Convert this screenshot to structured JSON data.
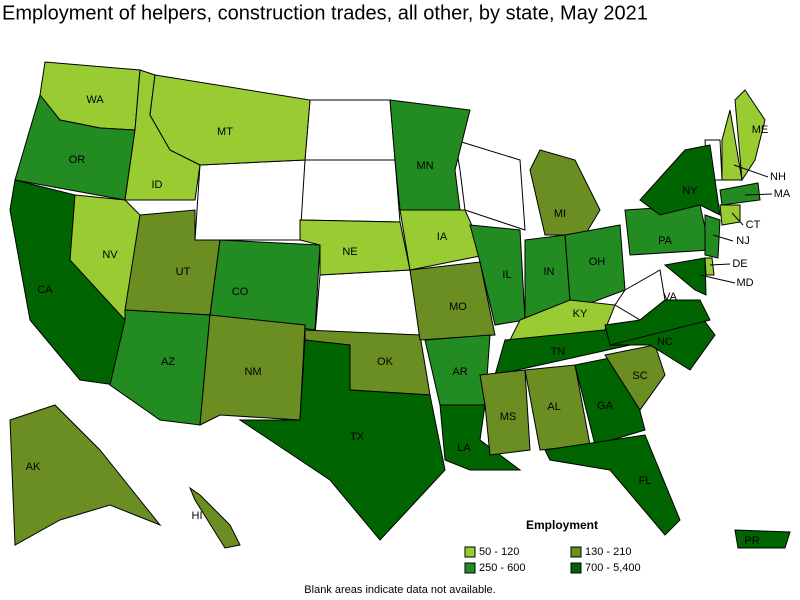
{
  "title": "Employment of helpers, construction trades, all other, by state, May 2021",
  "legend": {
    "title": "Employment",
    "items": [
      {
        "label": "50 - 120",
        "color": "#99cc33"
      },
      {
        "label": "130 - 210",
        "color": "#6b8e23"
      },
      {
        "label": "250 - 600",
        "color": "#228b22"
      },
      {
        "label": "700 - 5,400",
        "color": "#006400"
      }
    ]
  },
  "states": [
    {
      "label": "WA",
      "color": "#99cc33"
    },
    {
      "label": "OR",
      "color": "#228b22"
    },
    {
      "label": "CA",
      "color": "#006400"
    },
    {
      "label": "NV",
      "color": "#99cc33"
    },
    {
      "label": "ID",
      "color": "#99cc33"
    },
    {
      "label": "MT",
      "color": "#99cc33"
    },
    {
      "label": "UT",
      "color": "#6b8e23"
    },
    {
      "label": "CO",
      "color": "#228b22"
    },
    {
      "label": "AZ",
      "color": "#228b22"
    },
    {
      "label": "NM",
      "color": "#6b8e23"
    },
    {
      "label": "NE",
      "color": "#99cc33"
    },
    {
      "label": "OK",
      "color": "#6b8e23"
    },
    {
      "label": "TX",
      "color": "#006400"
    },
    {
      "label": "MN",
      "color": "#228b22"
    },
    {
      "label": "IA",
      "color": "#99cc33"
    },
    {
      "label": "MO",
      "color": "#6b8e23"
    },
    {
      "label": "AR",
      "color": "#228b22"
    },
    {
      "label": "LA",
      "color": "#006400"
    },
    {
      "label": "IL",
      "color": "#228b22"
    },
    {
      "label": "IN",
      "color": "#228b22"
    },
    {
      "label": "MI",
      "color": "#6b8e23"
    },
    {
      "label": "OH",
      "color": "#228b22"
    },
    {
      "label": "KY",
      "color": "#99cc33"
    },
    {
      "label": "TN",
      "color": "#006400"
    },
    {
      "label": "MS",
      "color": "#6b8e23"
    },
    {
      "label": "AL",
      "color": "#6b8e23"
    },
    {
      "label": "GA",
      "color": "#006400"
    },
    {
      "label": "FL",
      "color": "#006400"
    },
    {
      "label": "SC",
      "color": "#6b8e23"
    },
    {
      "label": "NC",
      "color": "#006400"
    },
    {
      "label": "VA",
      "color": "#006400"
    },
    {
      "label": "PA",
      "color": "#228b22"
    },
    {
      "label": "NY",
      "color": "#006400"
    },
    {
      "label": "MD",
      "color": "#006400"
    },
    {
      "label": "DE",
      "color": "#99cc33"
    },
    {
      "label": "NJ",
      "color": "#228b22"
    },
    {
      "label": "CT",
      "color": "#99cc33"
    },
    {
      "label": "MA",
      "color": "#228b22"
    },
    {
      "label": "NH",
      "color": "#99cc33"
    },
    {
      "label": "ME",
      "color": "#99cc33"
    },
    {
      "label": "AK",
      "color": "#6b8e23"
    },
    {
      "label": "HI",
      "color": "#6b8e23"
    },
    {
      "label": "PR",
      "color": "#006400"
    }
  ],
  "note": "Blank areas indicate data not available."
}
